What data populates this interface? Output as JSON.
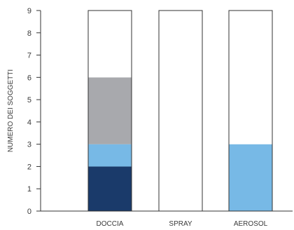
{
  "chart_data": {
    "type": "bar",
    "stacked": true,
    "xlabel": "",
    "ylabel": "NUMERO DEI SOGGETTI",
    "ylim": [
      0,
      9
    ],
    "yticks": [
      "0",
      "1",
      "2",
      "3",
      "4",
      "5",
      "6",
      "7",
      "8",
      "9"
    ],
    "grid": false,
    "categories": [
      "DOCCIA",
      "SPRAY",
      "AEROSOL"
    ],
    "total_per_category": 9,
    "series": [
      {
        "color": "#1a3a6a",
        "values": [
          2,
          0,
          0
        ]
      },
      {
        "color": "#77b9e6",
        "values": [
          1,
          0,
          3
        ]
      },
      {
        "color": "#a8a9ad",
        "values": [
          3,
          0,
          0
        ]
      },
      {
        "color": "#ffffff",
        "values": [
          3,
          9,
          6
        ]
      }
    ],
    "bar_outline_color": "#333333"
  }
}
